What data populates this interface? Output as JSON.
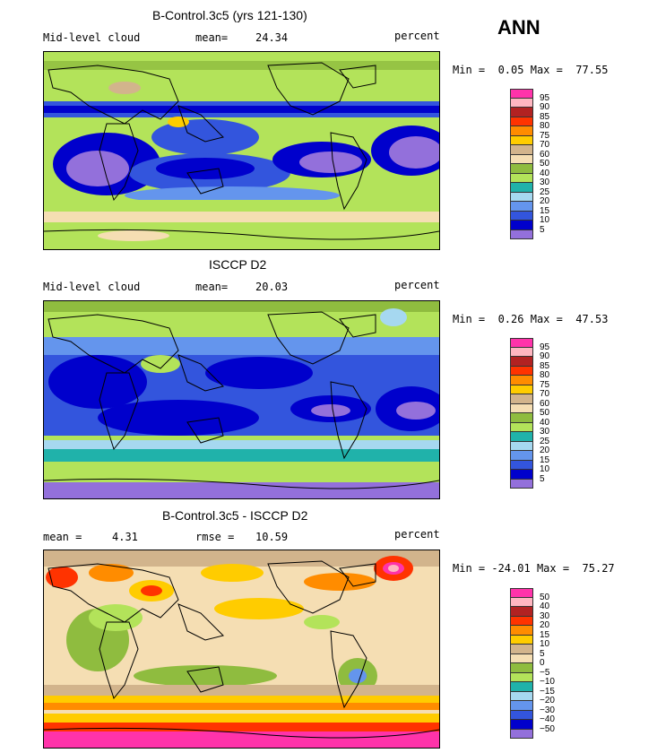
{
  "season": "ANN",
  "panels": [
    {
      "title": "B-Control.3c5 (yrs 121-130)",
      "left_label": "Mid-level cloud",
      "stat_label": "mean=",
      "stat_value": "24.34",
      "units": "percent",
      "min_label": "Min =",
      "min_value": "0.05",
      "max_label": "Max =",
      "max_value": "77.55",
      "levels": [
        "95",
        "90",
        "85",
        "80",
        "75",
        "70",
        "60",
        "50",
        "40",
        "30",
        "25",
        "20",
        "15",
        "10",
        "5"
      ]
    },
    {
      "title": "ISCCP D2",
      "left_label": "Mid-level cloud",
      "stat_label": "mean=",
      "stat_value": "20.03",
      "units": "percent",
      "min_label": "Min =",
      "min_value": "0.26",
      "max_label": "Max =",
      "max_value": "47.53",
      "levels": [
        "95",
        "90",
        "85",
        "80",
        "75",
        "70",
        "60",
        "50",
        "40",
        "30",
        "25",
        "20",
        "15",
        "10",
        "5"
      ]
    },
    {
      "title": "B-Control.3c5 - ISCCP D2",
      "left_label": "mean =",
      "left_value": "4.31",
      "stat_label": "rmse =",
      "stat_value": "10.59",
      "units": "percent",
      "min_label": "Min =",
      "min_value": "-24.01",
      "max_label": "Max =",
      "max_value": "75.27",
      "levels": [
        "50",
        "40",
        "30",
        "20",
        "15",
        "10",
        "5",
        "0",
        "−5",
        "−10",
        "−15",
        "−20",
        "−30",
        "−40",
        "−50"
      ]
    }
  ],
  "colors": {
    "abs_scale": [
      "#ff33aa",
      "#ffb6c1",
      "#b22222",
      "#ff3300",
      "#ff8c00",
      "#ffcc00",
      "#d2b48c",
      "#f5deb3",
      "#8fbc3f",
      "#b3e35a",
      "#20b2aa",
      "#a6d8f0",
      "#6495ed",
      "#3355dd",
      "#0000cc",
      "#9370db"
    ],
    "diff_scale": [
      "#ff33aa",
      "#ffb6c1",
      "#b22222",
      "#ff3300",
      "#ff8c00",
      "#ffcc00",
      "#d2b48c",
      "#f5deb3",
      "#8fbc3f",
      "#b3e35a",
      "#20b2aa",
      "#a6d8f0",
      "#6495ed",
      "#3355dd",
      "#0000cc",
      "#9370db"
    ]
  }
}
